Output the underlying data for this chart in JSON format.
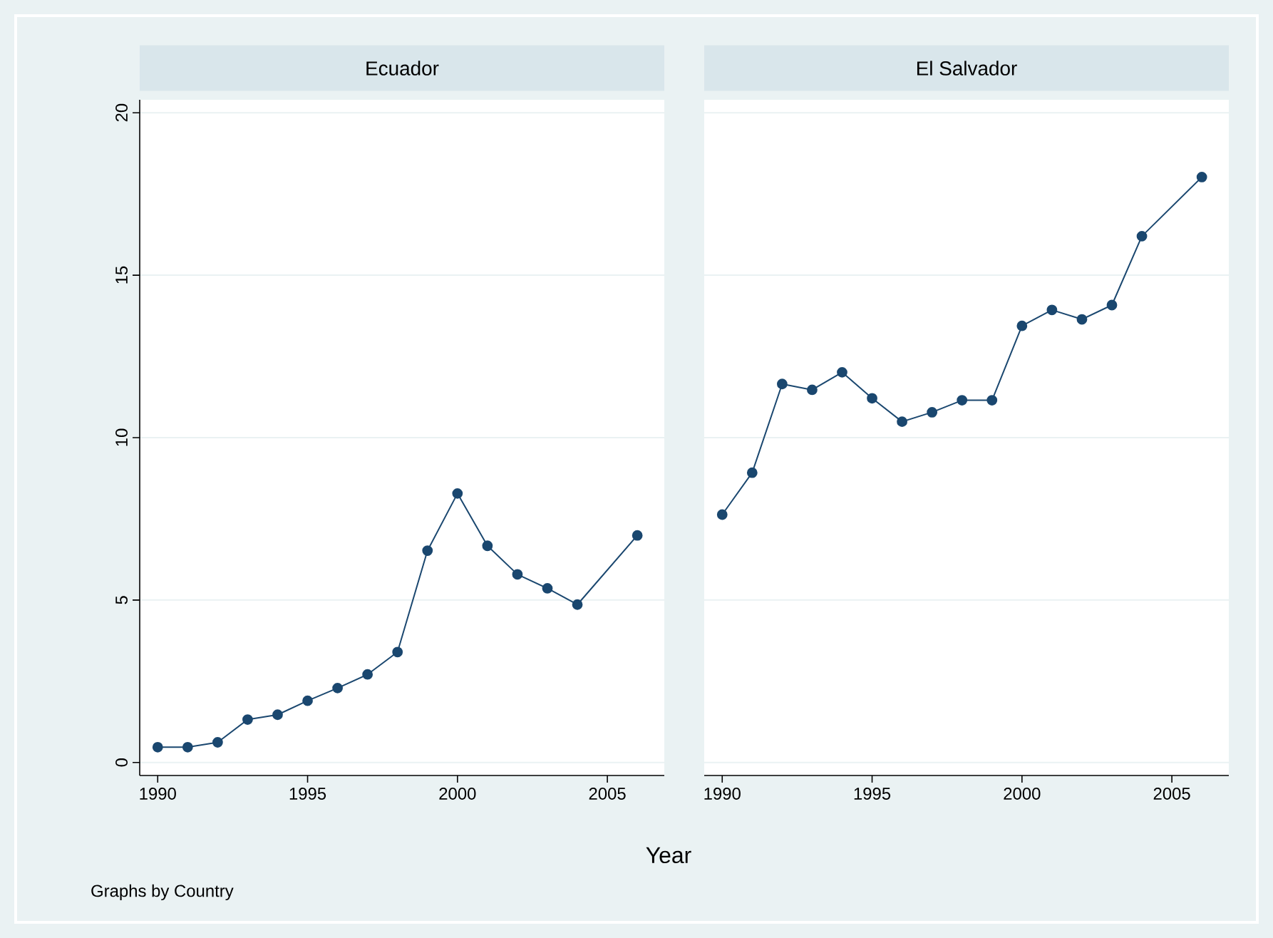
{
  "chart_data": [
    {
      "type": "line",
      "title": "Ecuador",
      "xlabel": "Year",
      "annotations": [
        "Graphs by Country"
      ],
      "x": [
        1990,
        1991,
        1992,
        1993,
        1994,
        1995,
        1996,
        1997,
        1998,
        1999,
        2000,
        2001,
        2002,
        2003,
        2004,
        2006
      ],
      "values": [
        0.47,
        0.47,
        0.62,
        1.32,
        1.47,
        1.9,
        2.29,
        2.71,
        3.4,
        6.52,
        8.28,
        6.67,
        5.79,
        5.36,
        4.86,
        6.99
      ],
      "color": "#1a476f",
      "xlim": [
        1989.4,
        2006.9
      ],
      "ylim": [
        -0.4,
        20.4
      ],
      "xticks": [
        1990,
        1995,
        2000,
        2005
      ],
      "yticks": [
        0,
        5,
        10,
        15,
        20
      ],
      "grid": "y",
      "marker": "circle",
      "line_style": "solid"
    },
    {
      "type": "line",
      "title": "El Salvador",
      "x": [
        1990,
        1991,
        1992,
        1993,
        1994,
        1995,
        1996,
        1997,
        1998,
        1999,
        2000,
        2001,
        2002,
        2003,
        2004,
        2006
      ],
      "values": [
        7.63,
        8.92,
        11.65,
        11.47,
        12.01,
        11.21,
        10.49,
        10.78,
        11.15,
        11.15,
        13.44,
        13.93,
        13.64,
        14.08,
        16.2,
        18.02
      ],
      "color": "#1a476f",
      "xlim": [
        1989.4,
        2006.9
      ],
      "ylim": [
        -0.4,
        20.4
      ],
      "xticks": [
        1990,
        1995,
        2000,
        2005
      ],
      "yticks": [
        0,
        5,
        10,
        15,
        20
      ],
      "grid": "y",
      "marker": "circle",
      "line_style": "solid",
      "tick_labels": "x"
    }
  ]
}
